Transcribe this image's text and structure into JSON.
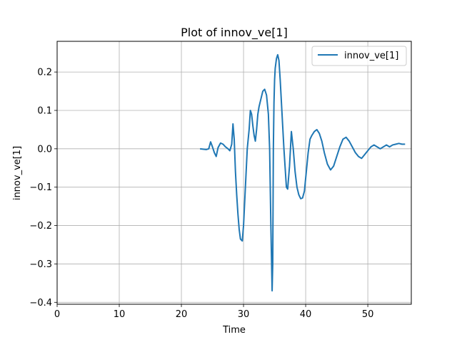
{
  "chart_data": {
    "type": "line",
    "title": "Plot of innov_ve[1]",
    "xlabel": "Time",
    "ylabel": "innov_ve[1]",
    "xlim": [
      0,
      57
    ],
    "ylim": [
      -0.405,
      0.28
    ],
    "xticks": [
      0,
      10,
      20,
      30,
      40,
      50
    ],
    "yticks": [
      -0.4,
      -0.3,
      -0.2,
      -0.1,
      0.0,
      0.1,
      0.2
    ],
    "ytick_labels": [
      "−0.4",
      "−0.3",
      "−0.2",
      "−0.1",
      "0.0",
      "0.1",
      "0.2"
    ],
    "grid": true,
    "legend_position": "top-right",
    "series": [
      {
        "name": "innov_ve[1]",
        "color": "#1f77b4",
        "x": [
          23.0,
          24.0,
          24.4,
          24.7,
          25.0,
          25.3,
          25.6,
          25.9,
          26.3,
          26.7,
          27.1,
          27.5,
          27.8,
          28.1,
          28.3,
          28.5,
          28.7,
          28.9,
          29.1,
          29.3,
          29.5,
          29.8,
          30.0,
          30.3,
          30.6,
          30.9,
          31.1,
          31.3,
          31.5,
          31.7,
          31.9,
          32.1,
          32.3,
          32.5,
          32.8,
          33.1,
          33.4,
          33.7,
          34.0,
          34.2,
          34.4,
          34.6,
          34.7,
          34.8,
          34.9,
          35.0,
          35.1,
          35.3,
          35.5,
          35.7,
          35.9,
          36.1,
          36.3,
          36.5,
          36.7,
          36.9,
          37.1,
          37.4,
          37.7,
          38.0,
          38.3,
          38.6,
          38.9,
          39.2,
          39.5,
          39.8,
          40.1,
          40.4,
          40.7,
          41.0,
          41.4,
          41.8,
          42.2,
          42.6,
          43.0,
          43.5,
          44.0,
          44.5,
          45.0,
          45.5,
          46.0,
          46.5,
          47.0,
          47.5,
          48.0,
          48.5,
          49.0,
          49.5,
          50.0,
          50.5,
          51.0,
          51.5,
          52.0,
          52.5,
          53.0,
          53.5,
          54.0,
          54.5,
          55.0,
          55.5,
          56.0
        ],
        "y": [
          0.0,
          -0.002,
          0.0,
          0.018,
          0.005,
          -0.01,
          -0.02,
          0.003,
          0.015,
          0.012,
          0.005,
          0.0,
          -0.005,
          0.012,
          0.065,
          0.025,
          -0.06,
          -0.12,
          -0.17,
          -0.21,
          -0.235,
          -0.24,
          -0.2,
          -0.1,
          0.0,
          0.05,
          0.1,
          0.09,
          0.06,
          0.035,
          0.02,
          0.05,
          0.09,
          0.11,
          0.13,
          0.15,
          0.155,
          0.14,
          0.09,
          0.0,
          -0.2,
          -0.37,
          -0.3,
          0.0,
          0.12,
          0.18,
          0.21,
          0.235,
          0.245,
          0.23,
          0.18,
          0.12,
          0.06,
          0.0,
          -0.05,
          -0.1,
          -0.105,
          -0.045,
          0.045,
          0.0,
          -0.06,
          -0.1,
          -0.12,
          -0.13,
          -0.128,
          -0.11,
          -0.06,
          -0.01,
          0.025,
          0.035,
          0.045,
          0.05,
          0.04,
          0.02,
          -0.01,
          -0.04,
          -0.055,
          -0.045,
          -0.02,
          0.005,
          0.025,
          0.03,
          0.02,
          0.005,
          -0.01,
          -0.02,
          -0.025,
          -0.015,
          -0.005,
          0.005,
          0.01,
          0.005,
          0.0,
          0.005,
          0.01,
          0.005,
          0.01,
          0.012,
          0.014,
          0.012,
          0.012
        ]
      }
    ]
  }
}
